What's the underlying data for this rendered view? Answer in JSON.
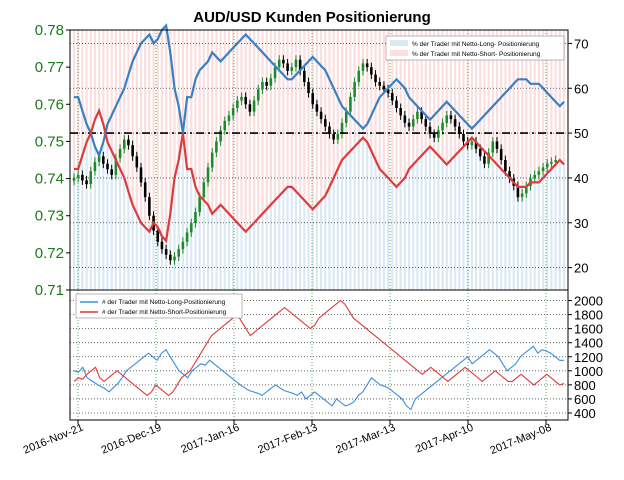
{
  "chart_data": [
    {
      "type": "line",
      "title": "AUD/USD Kunden Positionierung",
      "left_axis": {
        "ylim": [
          0.71,
          0.78
        ],
        "ticks": [
          "0.71",
          "0.72",
          "0.73",
          "0.74",
          "0.75",
          "0.76",
          "0.77",
          "0.78"
        ],
        "tick_values": [
          0.71,
          0.72,
          0.73,
          0.74,
          0.75,
          0.76,
          0.77,
          0.78
        ]
      },
      "right_axis": {
        "ylim": [
          15,
          73
        ],
        "ticks": [
          "20",
          "30",
          "40",
          "50",
          "60",
          "70"
        ],
        "tick_values": [
          20,
          30,
          40,
          50,
          60,
          70
        ]
      },
      "x_ticks": [
        "2016-Nov-21",
        "2016-Dec-19",
        "2017-Jan-16",
        "2017-Feb-13",
        "2017-Mar-13",
        "2017-Apr-10",
        "2017-May-08"
      ],
      "reference_line": 50,
      "grid": true,
      "legend": {
        "position": "top-right",
        "entries": [
          "% der Trader mit Netto-Long- Positionierung",
          "% der Trader mit Netto-Short- Positionierung"
        ]
      },
      "series": [
        {
          "name": "% der Trader mit Netto-Long- Positionierung",
          "color": "#3a7fc1",
          "area_color": "#dbe9f5",
          "values": [
            58,
            58,
            55,
            52,
            50,
            47,
            45,
            48,
            52,
            54,
            56,
            58,
            60,
            63,
            66,
            68,
            70,
            71,
            72,
            70,
            71,
            73,
            74,
            68,
            60,
            56,
            50,
            58,
            58,
            62,
            64,
            65,
            66,
            68,
            67,
            66,
            67,
            68,
            69,
            70,
            71,
            72,
            71,
            70,
            69,
            68,
            67,
            66,
            65,
            64,
            63,
            62,
            62,
            63,
            64,
            65,
            66,
            67,
            66,
            65,
            64,
            62,
            60,
            58,
            56,
            55,
            54,
            53,
            52,
            51,
            52,
            54,
            56,
            58,
            59,
            60,
            61,
            62,
            61,
            60,
            58,
            57,
            56,
            55,
            54,
            53,
            54,
            55,
            56,
            57,
            56,
            55,
            54,
            53,
            52,
            51,
            52,
            53,
            54,
            55,
            56,
            57,
            58,
            59,
            60,
            61,
            62,
            62,
            62,
            61,
            61,
            61,
            60,
            59,
            58,
            57,
            56,
            57
          ]
        },
        {
          "name": "% der Trader mit Netto-Short- Positionierung",
          "color": "#e03a3a",
          "area_color": "#fbdfdf",
          "values": [
            42,
            42,
            45,
            48,
            50,
            53,
            55,
            52,
            48,
            46,
            44,
            42,
            40,
            37,
            34,
            32,
            30,
            29,
            28,
            30,
            29,
            27,
            26,
            32,
            40,
            44,
            50,
            42,
            42,
            38,
            36,
            35,
            34,
            32,
            33,
            34,
            33,
            32,
            31,
            30,
            29,
            28,
            29,
            30,
            31,
            32,
            33,
            34,
            35,
            36,
            37,
            38,
            38,
            37,
            36,
            35,
            34,
            33,
            34,
            35,
            36,
            38,
            40,
            42,
            44,
            45,
            46,
            47,
            48,
            49,
            48,
            46,
            44,
            42,
            41,
            40,
            39,
            38,
            39,
            40,
            42,
            43,
            44,
            45,
            46,
            47,
            46,
            45,
            44,
            43,
            44,
            45,
            46,
            47,
            48,
            49,
            48,
            47,
            46,
            45,
            44,
            43,
            42,
            41,
            40,
            39,
            38,
            38,
            38,
            39,
            39,
            39,
            40,
            41,
            42,
            43,
            44,
            43
          ]
        }
      ],
      "price_series": {
        "name": "AUD/USD",
        "type": "candlestick",
        "color_up": "#1f8a2a",
        "color_down": "#000000",
        "close": [
          0.7402,
          0.741,
          0.7395,
          0.7385,
          0.742,
          0.7445,
          0.746,
          0.744,
          0.7425,
          0.741,
          0.7455,
          0.748,
          0.7505,
          0.749,
          0.746,
          0.743,
          0.739,
          0.735,
          0.73,
          0.726,
          0.723,
          0.721,
          0.7195,
          0.718,
          0.719,
          0.721,
          0.723,
          0.7255,
          0.728,
          0.731,
          0.735,
          0.739,
          0.743,
          0.747,
          0.75,
          0.753,
          0.7555,
          0.757,
          0.759,
          0.761,
          0.762,
          0.76,
          0.758,
          0.761,
          0.764,
          0.766,
          0.765,
          0.767,
          0.77,
          0.772,
          0.771,
          0.769,
          0.77,
          0.772,
          0.769,
          0.766,
          0.763,
          0.76,
          0.758,
          0.756,
          0.754,
          0.752,
          0.7505,
          0.752,
          0.755,
          0.758,
          0.762,
          0.766,
          0.769,
          0.771,
          0.77,
          0.768,
          0.766,
          0.765,
          0.764,
          0.763,
          0.761,
          0.759,
          0.757,
          0.755,
          0.754,
          0.756,
          0.758,
          0.756,
          0.754,
          0.752,
          0.751,
          0.753,
          0.755,
          0.757,
          0.756,
          0.754,
          0.752,
          0.75,
          0.749,
          0.75,
          0.748,
          0.746,
          0.744,
          0.747,
          0.75,
          0.748,
          0.745,
          0.742,
          0.74,
          0.738,
          0.735,
          0.736,
          0.738,
          0.74,
          0.741,
          0.742,
          0.743,
          0.744,
          0.7445,
          0.745
        ]
      }
    },
    {
      "type": "line",
      "ylim": [
        300,
        2150
      ],
      "ticks": [
        "400",
        "600",
        "800",
        "1000",
        "1200",
        "1400",
        "1600",
        "1800",
        "2000"
      ],
      "tick_values": [
        400,
        600,
        800,
        1000,
        1200,
        1400,
        1600,
        1800,
        2000
      ],
      "grid": true,
      "legend": {
        "position": "top-left",
        "entries": [
          "# der Trader mit Netto-Long-Positionierung",
          "# der Trader mit Netto-Short-Positionierung"
        ]
      },
      "series": [
        {
          "name": "# der Trader mit Netto-Long-Positionierung",
          "color": "#3a8fe0",
          "values": [
            1000,
            980,
            1050,
            900,
            860,
            820,
            780,
            750,
            700,
            760,
            820,
            900,
            1000,
            1050,
            1100,
            1150,
            1200,
            1250,
            1200,
            1150,
            1250,
            1300,
            1200,
            1100,
            1000,
            950,
            900,
            1000,
            1050,
            1100,
            1080,
            1150,
            1100,
            1050,
            1000,
            950,
            900,
            850,
            800,
            760,
            720,
            700,
            680,
            650,
            700,
            750,
            800,
            760,
            720,
            700,
            680,
            650,
            700,
            600,
            650,
            700,
            650,
            600,
            550,
            500,
            600,
            550,
            500,
            520,
            560,
            650,
            700,
            800,
            900,
            850,
            800,
            780,
            750,
            700,
            650,
            600,
            500,
            450,
            600,
            650,
            700,
            750,
            800,
            850,
            900,
            950,
            1000,
            1050,
            1100,
            1150,
            1200,
            1100,
            1150,
            1200,
            1250,
            1300,
            1250,
            1200,
            1100,
            1000,
            1050,
            1100,
            1200,
            1250,
            1300,
            1350,
            1250,
            1300,
            1280,
            1250,
            1200,
            1150,
            1150
          ]
        },
        {
          "name": "# der Trader mit Netto-Short-Positionierung",
          "color": "#e03a3a",
          "values": [
            850,
            900,
            880,
            950,
            1000,
            1050,
            900,
            850,
            900,
            950,
            1000,
            950,
            900,
            850,
            800,
            750,
            700,
            650,
            700,
            800,
            750,
            700,
            650,
            700,
            800,
            900,
            950,
            1000,
            1100,
            1200,
            1300,
            1400,
            1500,
            1550,
            1600,
            1650,
            1700,
            1750,
            1800,
            1700,
            1600,
            1500,
            1550,
            1600,
            1650,
            1700,
            1750,
            1800,
            1850,
            1900,
            1850,
            1800,
            1750,
            1700,
            1650,
            1600,
            1650,
            1750,
            1800,
            1850,
            1900,
            1950,
            2000,
            1950,
            1850,
            1750,
            1700,
            1650,
            1600,
            1550,
            1500,
            1450,
            1400,
            1350,
            1300,
            1250,
            1200,
            1150,
            1100,
            1050,
            1000,
            950,
            1000,
            1050,
            1000,
            950,
            900,
            850,
            900,
            950,
            1000,
            1050,
            1000,
            950,
            900,
            850,
            900,
            950,
            1000,
            950,
            900,
            850,
            850,
            900,
            950,
            900,
            850,
            800,
            850,
            900,
            950,
            900,
            850,
            800,
            820
          ]
        }
      ]
    }
  ]
}
